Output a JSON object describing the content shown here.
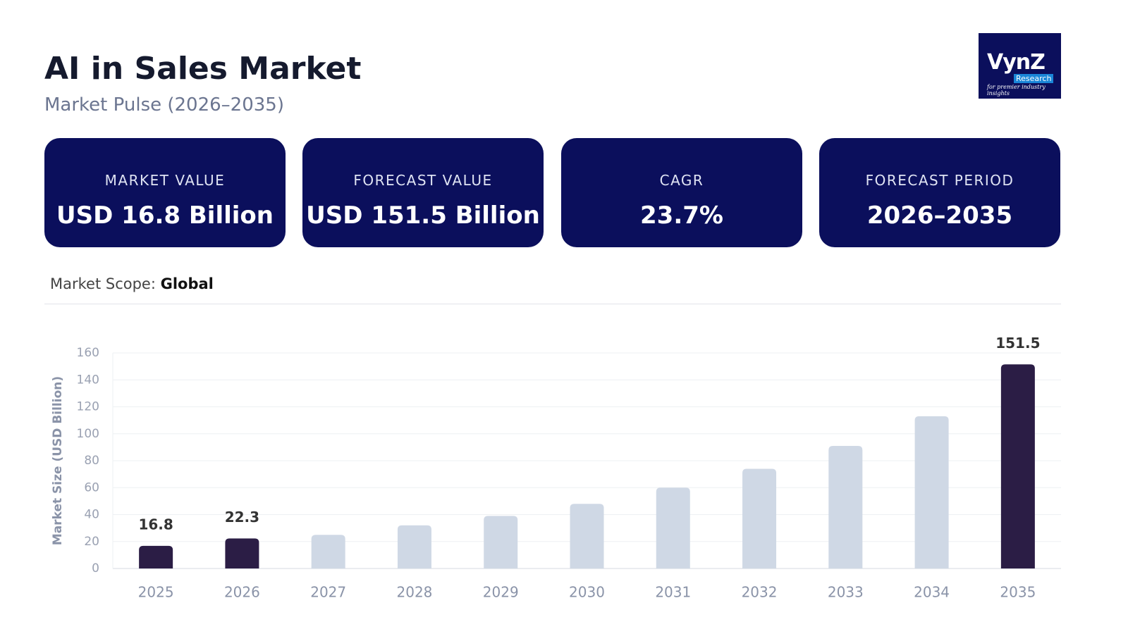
{
  "header": {
    "title": "AI in Sales Market",
    "subtitle": "Market Pulse (2026–2035)"
  },
  "logo": {
    "name": "VynZ",
    "sub": "Research",
    "tagline": "for premier industry insights"
  },
  "cards": [
    {
      "label": "MARKET VALUE",
      "value": "USD 16.8 Billion"
    },
    {
      "label": "FORECAST VALUE",
      "value": "USD 151.5 Billion"
    },
    {
      "label": "CAGR",
      "value": "23.7%"
    },
    {
      "label": "FORECAST PERIOD",
      "value": "2026–2035"
    }
  ],
  "scope": {
    "label": "Market Scope:",
    "value": "Global"
  },
  "chart_data": {
    "type": "bar",
    "y_label": "Market Size (USD Billion)",
    "categories": [
      "2025",
      "2026",
      "2027",
      "2028",
      "2029",
      "2030",
      "2031",
      "2032",
      "2033",
      "2034",
      "2035"
    ],
    "values": [
      16.8,
      22.3,
      25,
      32,
      39,
      48,
      60,
      74,
      91,
      113,
      151.5
    ],
    "value_labels": [
      "16.8",
      "22.3",
      null,
      null,
      null,
      null,
      null,
      null,
      null,
      null,
      "151.5"
    ],
    "colors": [
      "#2b1d45",
      "#2b1d45",
      "#cfd8e5",
      "#cfd8e5",
      "#cfd8e5",
      "#cfd8e5",
      "#cfd8e5",
      "#cfd8e5",
      "#cfd8e5",
      "#cfd8e5",
      "#2b1d45"
    ],
    "ylim": [
      0,
      160
    ],
    "yticks": [
      0,
      20,
      40,
      60,
      80,
      100,
      120,
      140,
      160
    ],
    "grid": true
  }
}
